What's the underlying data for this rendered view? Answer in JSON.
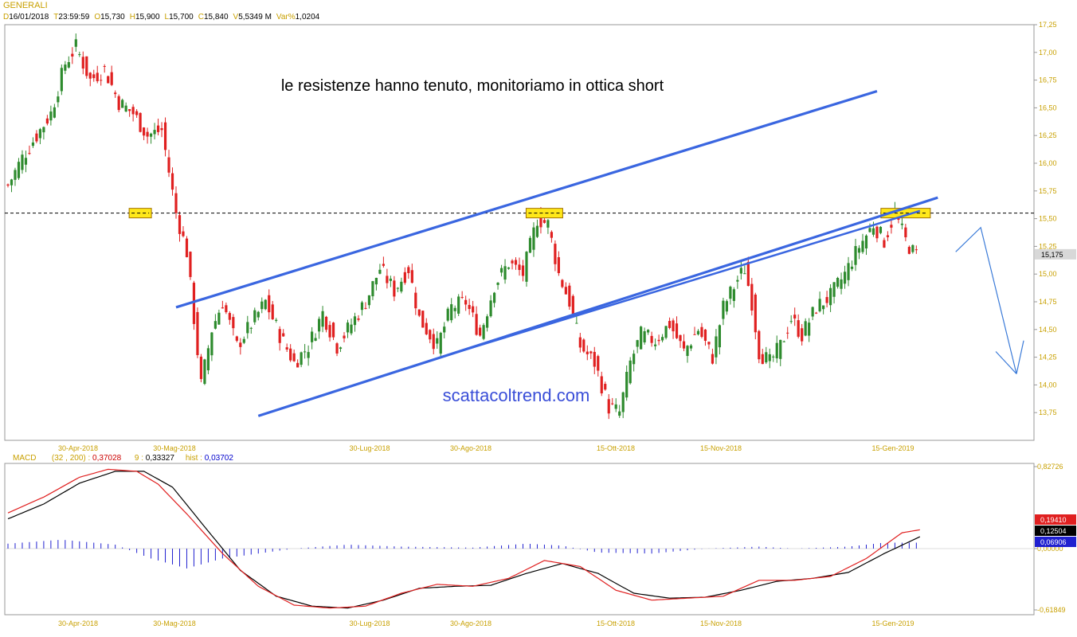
{
  "header": {
    "instrument": "GENERALI",
    "info": [
      {
        "key": "D",
        "value": "16/01/2018"
      },
      {
        "key": "T",
        "value": "23:59:59"
      },
      {
        "key": "O",
        "value": "15,730"
      },
      {
        "key": "H",
        "value": "15,900"
      },
      {
        "key": "L",
        "value": "15,700"
      },
      {
        "key": "C",
        "value": "15,840"
      },
      {
        "key": "V",
        "value": "5,5349 M"
      },
      {
        "key": "Var%",
        "value": "1,0204"
      }
    ]
  },
  "annotations": {
    "headline": "le resistenze hanno tenuto, monitoriamo in ottica short",
    "watermark": "scattacoltrend.com"
  },
  "macd_header": {
    "label": "MACD",
    "params": "(32 , 200) :",
    "macd_value": "0,37028",
    "signal_label": "9 :",
    "signal_value": "0,33327",
    "hist_label": "hist :",
    "hist_value": "0,03702"
  },
  "colors": {
    "bull": "#2e8b2e",
    "bear": "#e02020",
    "trendline": "#3a66e0",
    "forecast_arrow": "#3a7ad8",
    "resistance_box": "#ffe81a",
    "axis_text": "#c8a000",
    "macd_line": "#e02020",
    "signal_line": "#000000",
    "histogram": "#2020d0",
    "last_price_box": "#d8d8d8"
  },
  "chart_data": [
    {
      "type": "candlestick",
      "title": "GENERALI",
      "xlabel": "",
      "ylabel": "",
      "ylim": [
        13.5,
        17.25
      ],
      "y_ticks": [
        "17,25",
        "17,00",
        "16,75",
        "16,50",
        "16,25",
        "16,00",
        "15,75",
        "15,50",
        "15,25",
        "15,00",
        "14,75",
        "14,50",
        "14,25",
        "14,00",
        "13,75"
      ],
      "y_tick_values": [
        17.25,
        17.0,
        16.75,
        16.5,
        16.25,
        16.0,
        15.75,
        15.5,
        15.25,
        15.0,
        14.75,
        14.5,
        14.25,
        14.0,
        13.75
      ],
      "x_tick_labels": [
        "30-Apr-2018",
        "30-Mag-2018",
        "30-Lug-2018",
        "30-Ago-2018",
        "15-Ott-2018",
        "15-Nov-2018",
        "15-Gen-2019"
      ],
      "last_price": "15,175",
      "resistance_level": 15.55,
      "series": [
        {
          "candles_approx": "daily OHLC, Jan 2018 – Feb 2019",
          "anchors": [
            [
              0,
              15.8
            ],
            [
              4,
              16.05
            ],
            [
              8,
              16.25
            ],
            [
              12,
              16.45
            ],
            [
              16,
              16.9
            ],
            [
              19,
              17.05
            ],
            [
              23,
              16.75
            ],
            [
              27,
              16.85
            ],
            [
              31,
              16.55
            ],
            [
              35,
              16.45
            ],
            [
              39,
              16.25
            ],
            [
              43,
              16.3
            ],
            [
              47,
              15.55
            ],
            [
              50,
              15.2
            ],
            [
              52,
              14.6
            ],
            [
              54,
              14.0
            ],
            [
              57,
              14.5
            ],
            [
              60,
              14.75
            ],
            [
              64,
              14.35
            ],
            [
              68,
              14.55
            ],
            [
              72,
              14.75
            ],
            [
              76,
              14.45
            ],
            [
              80,
              14.2
            ],
            [
              84,
              14.35
            ],
            [
              88,
              14.65
            ],
            [
              92,
              14.35
            ],
            [
              96,
              14.55
            ],
            [
              100,
              14.75
            ],
            [
              104,
              15.05
            ],
            [
              108,
              14.85
            ],
            [
              112,
              15.05
            ],
            [
              115,
              14.6
            ],
            [
              120,
              14.35
            ],
            [
              124,
              14.7
            ],
            [
              128,
              14.75
            ],
            [
              132,
              14.45
            ],
            [
              136,
              14.9
            ],
            [
              140,
              15.1
            ],
            [
              144,
              15.0
            ],
            [
              148,
              15.5
            ],
            [
              151,
              15.45
            ],
            [
              154,
              15.0
            ],
            [
              157,
              14.75
            ],
            [
              160,
              14.35
            ],
            [
              164,
              14.2
            ],
            [
              168,
              13.8
            ],
            [
              171,
              13.75
            ],
            [
              174,
              14.2
            ],
            [
              177,
              14.45
            ],
            [
              181,
              14.4
            ],
            [
              185,
              14.55
            ],
            [
              189,
              14.3
            ],
            [
              193,
              14.5
            ],
            [
              197,
              14.25
            ],
            [
              200,
              14.7
            ],
            [
              204,
              14.95
            ],
            [
              206,
              15.05
            ],
            [
              208,
              14.75
            ],
            [
              210,
              14.3
            ],
            [
              213,
              14.2
            ],
            [
              216,
              14.35
            ],
            [
              219,
              14.6
            ],
            [
              222,
              14.45
            ],
            [
              226,
              14.7
            ],
            [
              230,
              14.8
            ],
            [
              234,
              15.0
            ],
            [
              238,
              15.25
            ],
            [
              242,
              15.45
            ],
            [
              245,
              15.3
            ],
            [
              248,
              15.55
            ],
            [
              251,
              15.3
            ],
            [
              253,
              15.2
            ],
            [
              254,
              15.175
            ]
          ]
        }
      ],
      "trendlines": [
        {
          "name": "upper channel",
          "x1": 47,
          "y1": 14.7,
          "x2": 243,
          "y2": 16.65
        },
        {
          "name": "lower channel",
          "x1": 70,
          "y1": 13.72,
          "x2": 260,
          "y2": 15.69
        },
        {
          "name": "middle line",
          "x1": 124,
          "y1": 14.28,
          "x2": 255,
          "y2": 15.57
        }
      ],
      "resistance_boxes": [
        {
          "x": 37,
          "price": 15.55
        },
        {
          "x": 150,
          "price": 15.55
        },
        {
          "x": 251,
          "price": 15.55
        }
      ],
      "forecast_arrow": [
        [
          265,
          15.2
        ],
        [
          272,
          15.42
        ],
        [
          282,
          14.1
        ],
        [
          284,
          14.4
        ]
      ]
    },
    {
      "type": "line",
      "title": "MACD",
      "ylim": [
        -0.61849,
        0.82726
      ],
      "y_ticks": [
        "0,82726",
        "0,00000",
        "-0,61849"
      ],
      "y_tick_values": [
        0.82726,
        0.0,
        -0.61849
      ],
      "value_badges": [
        {
          "label": "0,19410",
          "color": "#e02020"
        },
        {
          "label": "0,12504",
          "color": "#000000"
        },
        {
          "label": "0,06906",
          "color": "#2020d0"
        }
      ],
      "x_tick_labels": [
        "30-Apr-2018",
        "30-Mag-2018",
        "30-Lug-2018",
        "30-Ago-2018",
        "15-Ott-2018",
        "15-Nov-2018",
        "15-Gen-2019"
      ],
      "series": [
        {
          "name": "MACD",
          "anchors": [
            [
              0,
              0.36
            ],
            [
              10,
              0.52
            ],
            [
              20,
              0.72
            ],
            [
              28,
              0.8
            ],
            [
              36,
              0.78
            ],
            [
              42,
              0.65
            ],
            [
              50,
              0.35
            ],
            [
              60,
              -0.05
            ],
            [
              70,
              -0.38
            ],
            [
              80,
              -0.57
            ],
            [
              90,
              -0.6
            ],
            [
              100,
              -0.58
            ],
            [
              110,
              -0.45
            ],
            [
              120,
              -0.36
            ],
            [
              130,
              -0.38
            ],
            [
              140,
              -0.3
            ],
            [
              150,
              -0.12
            ],
            [
              160,
              -0.18
            ],
            [
              170,
              -0.42
            ],
            [
              180,
              -0.52
            ],
            [
              190,
              -0.5
            ],
            [
              200,
              -0.48
            ],
            [
              210,
              -0.32
            ],
            [
              220,
              -0.32
            ],
            [
              230,
              -0.28
            ],
            [
              240,
              -0.1
            ],
            [
              250,
              0.16
            ],
            [
              255,
              0.19
            ]
          ]
        },
        {
          "name": "Signal",
          "anchors": [
            [
              0,
              0.3
            ],
            [
              10,
              0.45
            ],
            [
              20,
              0.66
            ],
            [
              30,
              0.78
            ],
            [
              38,
              0.78
            ],
            [
              46,
              0.62
            ],
            [
              55,
              0.22
            ],
            [
              65,
              -0.22
            ],
            [
              75,
              -0.48
            ],
            [
              85,
              -0.58
            ],
            [
              95,
              -0.6
            ],
            [
              105,
              -0.52
            ],
            [
              115,
              -0.4
            ],
            [
              125,
              -0.38
            ],
            [
              135,
              -0.37
            ],
            [
              145,
              -0.25
            ],
            [
              155,
              -0.15
            ],
            [
              165,
              -0.25
            ],
            [
              175,
              -0.45
            ],
            [
              185,
              -0.5
            ],
            [
              195,
              -0.49
            ],
            [
              205,
              -0.42
            ],
            [
              215,
              -0.33
            ],
            [
              225,
              -0.3
            ],
            [
              235,
              -0.24
            ],
            [
              245,
              -0.05
            ],
            [
              255,
              0.12
            ]
          ]
        },
        {
          "name": "hist",
          "anchors": [
            [
              0,
              0.05
            ],
            [
              15,
              0.09
            ],
            [
              30,
              0.04
            ],
            [
              40,
              -0.1
            ],
            [
              50,
              -0.2
            ],
            [
              60,
              -0.1
            ],
            [
              70,
              -0.05
            ],
            [
              80,
              0.0
            ],
            [
              95,
              0.04
            ],
            [
              110,
              0.02
            ],
            [
              130,
              0.01
            ],
            [
              145,
              0.05
            ],
            [
              155,
              0.03
            ],
            [
              165,
              -0.04
            ],
            [
              180,
              -0.05
            ],
            [
              195,
              0.0
            ],
            [
              210,
              0.02
            ],
            [
              220,
              0.0
            ],
            [
              235,
              0.02
            ],
            [
              245,
              0.06
            ],
            [
              255,
              0.06
            ]
          ]
        }
      ]
    }
  ]
}
